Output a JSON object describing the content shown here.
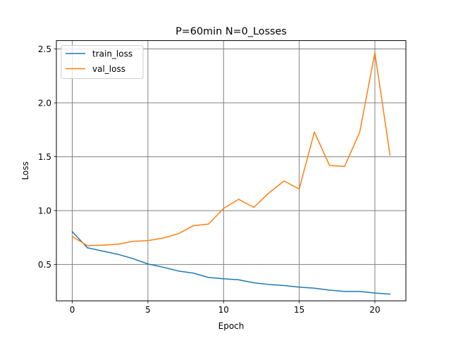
{
  "chart_data": {
    "type": "line",
    "title": "P=60min N=0_Losses",
    "xlabel": "Epoch",
    "ylabel": "Loss",
    "xlim": [
      -1.05,
      22.05
    ],
    "ylim": [
      0.163,
      2.578
    ],
    "xticks": [
      0,
      5,
      10,
      15,
      20
    ],
    "yticks": [
      0.5,
      1.0,
      1.5,
      2.0,
      2.5
    ],
    "xtick_labels": [
      "0",
      "5",
      "10",
      "15",
      "20"
    ],
    "ytick_labels": [
      "0.5",
      "1.0",
      "1.5",
      "2.0",
      "2.5"
    ],
    "grid": true,
    "legend_position": "top-left",
    "x": [
      0,
      1,
      2,
      3,
      4,
      5,
      6,
      7,
      8,
      9,
      10,
      11,
      12,
      13,
      14,
      15,
      16,
      17,
      18,
      19,
      20,
      21
    ],
    "series": [
      {
        "name": "train_loss",
        "color": "#1f77b4",
        "values": [
          0.805,
          0.655,
          0.625,
          0.595,
          0.555,
          0.505,
          0.475,
          0.44,
          0.42,
          0.38,
          0.368,
          0.358,
          0.33,
          0.315,
          0.305,
          0.29,
          0.28,
          0.262,
          0.25,
          0.25,
          0.235,
          0.225
        ]
      },
      {
        "name": "val_loss",
        "color": "#ff7f0e",
        "values": [
          0.76,
          0.675,
          0.68,
          0.688,
          0.715,
          0.722,
          0.745,
          0.785,
          0.86,
          0.875,
          1.02,
          1.105,
          1.03,
          1.165,
          1.275,
          1.2,
          1.73,
          1.42,
          1.41,
          1.73,
          2.465,
          1.515
        ]
      }
    ]
  }
}
